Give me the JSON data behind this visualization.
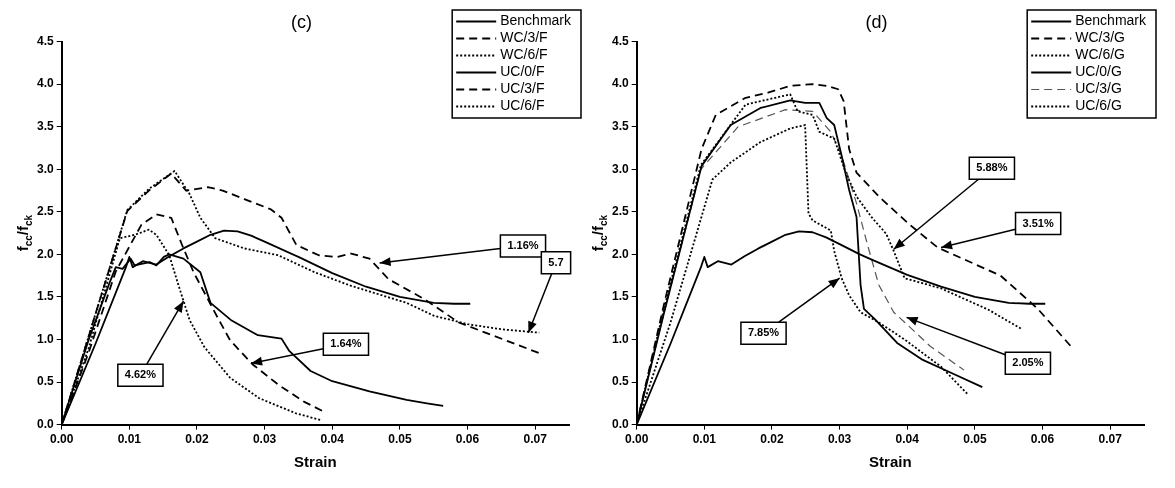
{
  "chart_data": [
    {
      "type": "line",
      "title": "(c)",
      "xlabel": "Strain",
      "ylabel": "f$_{cc}$/f$_{ck}$",
      "xlim": [
        0,
        0.075
      ],
      "ylim": [
        0,
        4.5
      ],
      "xticks": [
        {
          "value": 0,
          "label": "0.00"
        },
        0.01,
        0.02,
        0.03,
        0.04,
        0.05,
        0.06,
        0.07
      ],
      "yticks": [
        {
          "value": 0,
          "label": "0.0"
        },
        0.5,
        {
          "value": 1,
          "label": "1.0"
        },
        1.5,
        {
          "value": 2,
          "label": "2.0"
        },
        2.5,
        {
          "value": 3,
          "label": "3.0"
        },
        3.5,
        {
          "value": 4,
          "label": "4.0"
        },
        4.5
      ],
      "grid": false,
      "legend": "top right",
      "marker": "none",
      "series": [
        {
          "name": "Benchmark",
          "color": "#000000",
          "line_style": "solid",
          "x": [
            0,
            0.005,
            0.0095,
            0.01,
            0.0105,
            0.012,
            0.014,
            0.016,
            0.018,
            0.02,
            0.022,
            0.024,
            0.026,
            0.028,
            0.03,
            0.035,
            0.04,
            0.045,
            0.05,
            0.055,
            0.058,
            0.0604
          ],
          "values": [
            0,
            0.95,
            1.85,
            1.97,
            1.85,
            1.92,
            1.88,
            1.98,
            2.07,
            2.15,
            2.23,
            2.28,
            2.27,
            2.22,
            2.15,
            1.97,
            1.78,
            1.62,
            1.5,
            1.43,
            1.42,
            1.42
          ]
        },
        {
          "name": "WC/3/F",
          "color": "#000000",
          "line_style": "dashed",
          "x": [
            0,
            0.005,
            0.0097,
            0.0129,
            0.0162,
            0.0184,
            0.0216,
            0.0238,
            0.027,
            0.0309,
            0.0325,
            0.0347,
            0.038,
            0.0407,
            0.0428,
            0.0455,
            0.0483,
            0.0537,
            0.0587,
            0.0706
          ],
          "values": [
            0,
            1.3,
            2.51,
            2.75,
            2.95,
            2.75,
            2.79,
            2.75,
            2.65,
            2.53,
            2.43,
            2.11,
            1.99,
            1.97,
            2.01,
            1.95,
            1.71,
            1.47,
            1.2,
            0.84
          ]
        },
        {
          "name": "WC/6/F",
          "color": "#000000",
          "line_style": "dotted",
          "x": [
            0,
            0.005,
            0.0097,
            0.0129,
            0.0167,
            0.0189,
            0.0205,
            0.0227,
            0.027,
            0.032,
            0.0374,
            0.0428,
            0.051,
            0.055,
            0.06,
            0.065,
            0.0706
          ],
          "values": [
            0,
            1.3,
            2.52,
            2.77,
            2.98,
            2.71,
            2.43,
            2.19,
            2.07,
            1.99,
            1.79,
            1.63,
            1.43,
            1.28,
            1.18,
            1.12,
            1.08
          ]
        },
        {
          "name": "UC/0/F",
          "color": "#000000",
          "line_style": "solid",
          "x": [
            0,
            0.004,
            0.007,
            0.008,
            0.009,
            0.0102,
            0.0108,
            0.013,
            0.014,
            0.0151,
            0.0159,
            0.018,
            0.0205,
            0.022,
            0.025,
            0.029,
            0.0325,
            0.0336,
            0.0368,
            0.04,
            0.0455,
            0.051,
            0.054,
            0.0564
          ],
          "values": [
            0,
            1.0,
            1.65,
            1.85,
            1.83,
            1.95,
            1.87,
            1.91,
            1.87,
            1.97,
            2.0,
            1.95,
            1.79,
            1.43,
            1.23,
            1.05,
            1.01,
            0.87,
            0.63,
            0.51,
            0.39,
            0.29,
            0.25,
            0.22
          ]
        },
        {
          "name": "UC/3/F",
          "color": "#000000",
          "line_style": "dashed",
          "x": [
            0,
            0.004,
            0.008,
            0.0118,
            0.014,
            0.0162,
            0.0178,
            0.0195,
            0.0227,
            0.0249,
            0.0282,
            0.032,
            0.0358,
            0.0388
          ],
          "values": [
            0,
            0.85,
            1.8,
            2.35,
            2.47,
            2.43,
            2.11,
            1.79,
            1.31,
            0.99,
            0.71,
            0.47,
            0.27,
            0.15
          ]
        },
        {
          "name": "UC/6/F",
          "color": "#000000",
          "line_style": "dotted",
          "x": [
            0,
            0.004,
            0.0086,
            0.0108,
            0.0129,
            0.014,
            0.0159,
            0.0173,
            0.0189,
            0.0211,
            0.0249,
            0.0292,
            0.0347,
            0.0385
          ],
          "values": [
            0,
            0.9,
            2.19,
            2.23,
            2.29,
            2.23,
            1.99,
            1.63,
            1.23,
            0.91,
            0.55,
            0.31,
            0.13,
            0.05
          ]
        }
      ],
      "annotations": [
        {
          "text": "1.16%",
          "x": 0.047,
          "y": 1.9
        },
        {
          "text": "1.64%",
          "x": 0.028,
          "y": 0.72
        },
        {
          "text": "4.62%",
          "x": 0.018,
          "y": 1.45
        },
        {
          "text": "5.7",
          "x": 0.069,
          "y": 1.08
        }
      ]
    },
    {
      "type": "line",
      "title": "(d)",
      "xlabel": "Strain",
      "ylabel": "f$_{cc}$/f$_{ck}$",
      "xlim": [
        0,
        0.075
      ],
      "ylim": [
        0,
        4.5
      ],
      "xticks": [
        {
          "value": 0,
          "label": "0.00"
        },
        0.01,
        0.02,
        0.03,
        0.04,
        0.05,
        0.06,
        0.07
      ],
      "yticks": [
        {
          "value": 0,
          "label": "0.0"
        },
        0.5,
        {
          "value": 1,
          "label": "1.0"
        },
        1.5,
        {
          "value": 2,
          "label": "2.0"
        },
        2.5,
        {
          "value": 3,
          "label": "3.0"
        },
        3.5,
        {
          "value": 4,
          "label": "4.0"
        },
        4.5
      ],
      "grid": false,
      "legend": "top right",
      "marker": "none",
      "series": [
        {
          "name": "Benchmark",
          "color": "#000000",
          "line_style": "solid",
          "x": [
            0,
            0.005,
            0.0095,
            0.01,
            0.0105,
            0.012,
            0.014,
            0.016,
            0.018,
            0.02,
            0.022,
            0.024,
            0.026,
            0.028,
            0.03,
            0.033,
            0.035,
            0.04,
            0.045,
            0.05,
            0.055,
            0.058,
            0.0604
          ],
          "values": [
            0,
            0.95,
            1.85,
            1.97,
            1.85,
            1.92,
            1.88,
            1.98,
            2.07,
            2.15,
            2.23,
            2.27,
            2.26,
            2.2,
            2.12,
            2.0,
            1.93,
            1.76,
            1.62,
            1.5,
            1.43,
            1.42,
            1.42
          ]
        },
        {
          "name": "WC/3/G",
          "color": "#000000",
          "line_style": "dashed",
          "x": [
            0,
            0.004,
            0.0096,
            0.0117,
            0.0161,
            0.0194,
            0.0227,
            0.026,
            0.0281,
            0.0298,
            0.0306,
            0.0314,
            0.0325,
            0.0358,
            0.0402,
            0.0445,
            0.0538,
            0.0593,
            0.0643
          ],
          "values": [
            0,
            1.4,
            3.24,
            3.64,
            3.84,
            3.9,
            3.98,
            4.0,
            3.98,
            3.94,
            3.8,
            3.24,
            2.96,
            2.68,
            2.36,
            2.08,
            1.75,
            1.36,
            0.91
          ]
        },
        {
          "name": "WC/6/G",
          "color": "#000000",
          "line_style": "dotted",
          "x": [
            0,
            0.004,
            0.0095,
            0.0161,
            0.0227,
            0.0238,
            0.026,
            0.027,
            0.0292,
            0.0309,
            0.0325,
            0.0347,
            0.0369,
            0.038,
            0.0396,
            0.045,
            0.052,
            0.057
          ],
          "values": [
            0,
            1.35,
            3.05,
            3.76,
            3.88,
            3.68,
            3.64,
            3.44,
            3.36,
            2.96,
            2.68,
            2.44,
            2.24,
            2.04,
            1.72,
            1.6,
            1.35,
            1.12
          ]
        },
        {
          "name": "UC/0/G",
          "color": "#000000",
          "line_style": "solid",
          "x": [
            0,
            0.004,
            0.0096,
            0.0139,
            0.0183,
            0.0227,
            0.0249,
            0.027,
            0.0281,
            0.0292,
            0.0303,
            0.0314,
            0.0325,
            0.0331,
            0.0336,
            0.0352,
            0.0385,
            0.0423,
            0.0467,
            0.0511
          ],
          "values": [
            0,
            1.3,
            3.04,
            3.52,
            3.72,
            3.81,
            3.78,
            3.78,
            3.6,
            3.52,
            3.16,
            2.76,
            2.44,
            1.64,
            1.36,
            1.24,
            0.96,
            0.76,
            0.6,
            0.44
          ]
        },
        {
          "name": "UC/3/G",
          "color": "#555555",
          "line_style": "dashed",
          "x": [
            0,
            0.004,
            0.0095,
            0.015,
            0.022,
            0.026,
            0.0287,
            0.0303,
            0.0325,
            0.0341,
            0.0358,
            0.038,
            0.0402,
            0.0434,
            0.0484
          ],
          "values": [
            0,
            1.3,
            3.0,
            3.5,
            3.7,
            3.68,
            3.44,
            3.16,
            2.6,
            2.12,
            1.64,
            1.32,
            1.16,
            0.92,
            0.64
          ]
        },
        {
          "name": "UC/6/G",
          "color": "#000000",
          "line_style": "dotted",
          "x": [
            0,
            0.005,
            0.0112,
            0.0139,
            0.0183,
            0.0227,
            0.0249,
            0.0254,
            0.026,
            0.0287,
            0.0292,
            0.0303,
            0.0314,
            0.0331,
            0.0358,
            0.0396,
            0.045,
            0.0489
          ],
          "values": [
            0,
            1.2,
            2.88,
            3.08,
            3.32,
            3.48,
            3.52,
            2.48,
            2.4,
            2.28,
            2.04,
            1.72,
            1.52,
            1.32,
            1.2,
            1.0,
            0.68,
            0.36
          ]
        }
      ],
      "annotations": [
        {
          "text": "5.88%",
          "x": 0.038,
          "y": 2.06
        },
        {
          "text": "3.51%",
          "x": 0.045,
          "y": 2.08
        },
        {
          "text": "7.85%",
          "x": 0.03,
          "y": 1.72
        },
        {
          "text": "2.05%",
          "x": 0.0399,
          "y": 1.26
        }
      ]
    }
  ]
}
